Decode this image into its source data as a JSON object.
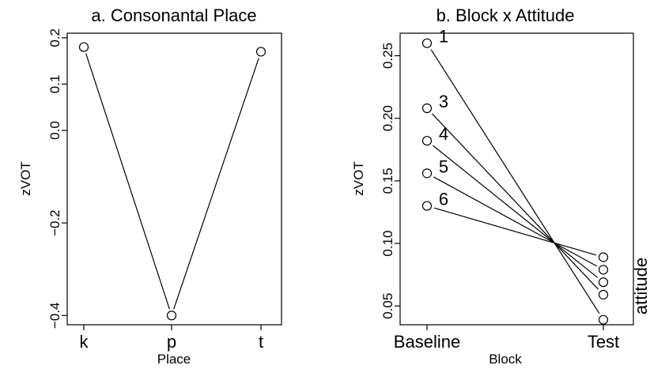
{
  "chart_data": [
    {
      "type": "line",
      "title": "a. Consonantal Place",
      "xlabel": "Place",
      "ylabel": "zVOT",
      "categories": [
        "k",
        "p",
        "t"
      ],
      "y_ticks": [
        0.2,
        0.1,
        0.0,
        -0.2,
        -0.4
      ],
      "y_tick_labels": [
        "0.2",
        "0.1",
        "0.0",
        "−0.2",
        "−0.4"
      ],
      "ylim": [
        -0.42,
        0.21
      ],
      "series": [
        {
          "values": [
            0.18,
            -0.4,
            0.17
          ]
        }
      ],
      "marker": "open-circle",
      "color": "#000000"
    },
    {
      "type": "line",
      "title": "b. Block x Attitude",
      "xlabel": "Block",
      "ylabel": "zVOT",
      "legend_title": "attitude",
      "categories": [
        "Baseline",
        "Test"
      ],
      "y_ticks": [
        0.05,
        0.1,
        0.15,
        0.2,
        0.25
      ],
      "y_tick_labels": [
        "0.05",
        "0.10",
        "0.15",
        "0.20",
        "0.25"
      ],
      "ylim": [
        0.035,
        0.268
      ],
      "series": [
        {
          "name": "1",
          "values": [
            0.26,
            0.039
          ]
        },
        {
          "name": "3",
          "values": [
            0.208,
            0.059
          ]
        },
        {
          "name": "4",
          "values": [
            0.182,
            0.069
          ]
        },
        {
          "name": "5",
          "values": [
            0.156,
            0.079
          ]
        },
        {
          "name": "6",
          "values": [
            0.13,
            0.089
          ]
        }
      ],
      "marker": "open-circle",
      "color": "#000000"
    }
  ]
}
